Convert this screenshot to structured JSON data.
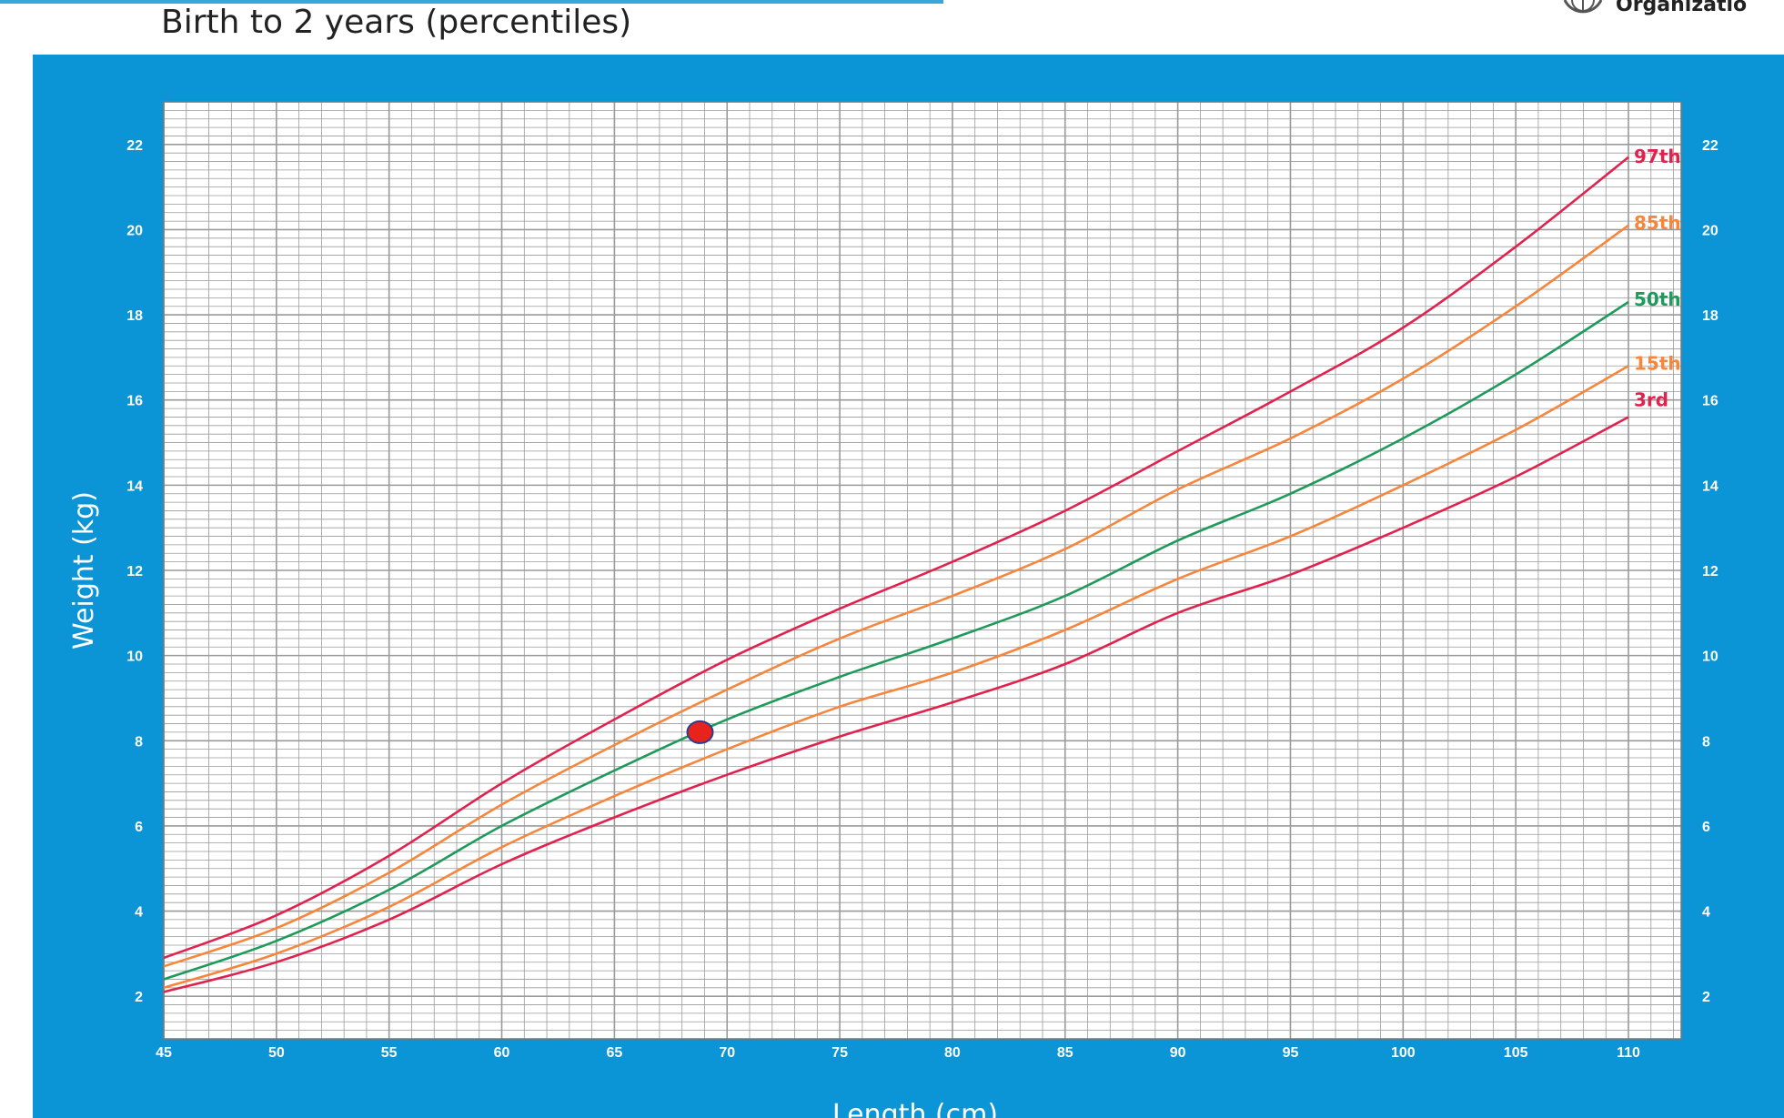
{
  "header": {
    "subtitle": "Birth to 2 years (percentiles)",
    "org_text": "Organizatio"
  },
  "colors": {
    "panel": "#0b95d6",
    "grid": "#9a9a9a",
    "p97": "#e0234e",
    "p85": "#f5863b",
    "p50": "#1e9a5a",
    "p15": "#f5863b",
    "p3": "#e0234e",
    "marker": "#e8231c",
    "marker_edge": "#2b3d8f"
  },
  "chart_data": {
    "type": "line",
    "xlabel": "Length (cm)",
    "ylabel": "Weight (kg)",
    "xlim": [
      45,
      110
    ],
    "ylim": [
      1,
      23
    ],
    "x_ticks": [
      45,
      50,
      55,
      60,
      65,
      70,
      75,
      80,
      85,
      90,
      95,
      100,
      105,
      110
    ],
    "y_ticks": [
      2,
      4,
      6,
      8,
      10,
      12,
      14,
      16,
      18,
      20,
      22
    ],
    "grid": true,
    "x": [
      45,
      50,
      55,
      60,
      65,
      70,
      75,
      80,
      85,
      90,
      95,
      100,
      105,
      110
    ],
    "series": [
      {
        "name": "97th",
        "values": [
          2.9,
          3.9,
          5.3,
          7.0,
          8.5,
          9.9,
          11.1,
          12.2,
          13.4,
          14.8,
          16.2,
          17.7,
          19.6,
          21.7
        ]
      },
      {
        "name": "85th",
        "values": [
          2.7,
          3.6,
          4.9,
          6.5,
          7.9,
          9.2,
          10.4,
          11.4,
          12.5,
          13.9,
          15.1,
          16.5,
          18.2,
          20.1
        ]
      },
      {
        "name": "50th",
        "values": [
          2.4,
          3.3,
          4.5,
          6.0,
          7.3,
          8.5,
          9.5,
          10.4,
          11.4,
          12.7,
          13.8,
          15.1,
          16.6,
          18.3
        ]
      },
      {
        "name": "15th",
        "values": [
          2.2,
          3.0,
          4.1,
          5.5,
          6.7,
          7.8,
          8.8,
          9.6,
          10.6,
          11.8,
          12.8,
          14.0,
          15.3,
          16.8
        ]
      },
      {
        "name": "3rd",
        "values": [
          2.1,
          2.8,
          3.8,
          5.1,
          6.2,
          7.2,
          8.1,
          8.9,
          9.8,
          11.0,
          11.9,
          13.0,
          14.2,
          15.6
        ]
      }
    ],
    "plotted_point": {
      "x": 68.8,
      "y": 8.2
    }
  }
}
